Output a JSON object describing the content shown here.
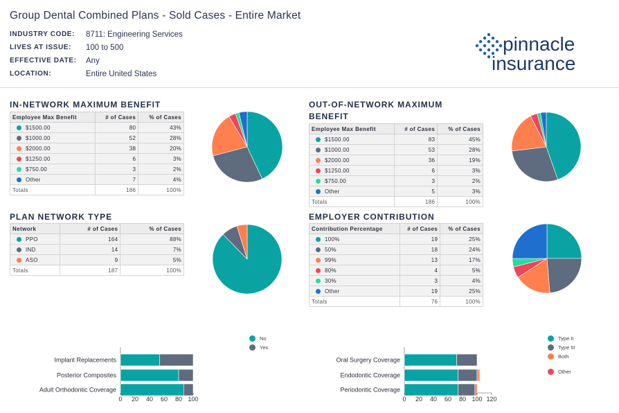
{
  "header": {
    "title": "Group Dental Combined Plans - Sold Cases - Entire Market",
    "meta": [
      {
        "key": "INDUSTRY CODE:",
        "value": "8711: Engineering Services"
      },
      {
        "key": "LIVES AT ISSUE:",
        "value": "100 to 500"
      },
      {
        "key": "EFFECTIVE DATE:",
        "value": "Any"
      },
      {
        "key": "LOCATION:",
        "value": "Entire United States"
      }
    ],
    "logo_top": "pinnacle",
    "logo_bottom": "insurance"
  },
  "colors": {
    "teal": "#0aa3a3",
    "slate": "#5f6b7e",
    "orange": "#ff7f4f",
    "red": "#ef4558",
    "green": "#2ed9a0",
    "blue": "#1f6fcf"
  },
  "chart_data": [
    {
      "type": "table",
      "title": "IN-NETWORK MAXIMUM BENEFIT",
      "columns": [
        "Employee Max Benefit",
        "# of Cases",
        "% of Cases"
      ],
      "rows": [
        {
          "label": "$1500.00",
          "cases": "80",
          "pct": "43%",
          "value": 80,
          "color": "#0aa3a3"
        },
        {
          "label": "$1000.00",
          "cases": "52",
          "pct": "28%",
          "value": 52,
          "color": "#5f6b7e"
        },
        {
          "label": "$2000.00",
          "cases": "38",
          "pct": "20%",
          "value": 38,
          "color": "#ff7f4f"
        },
        {
          "label": "$1250.00",
          "cases": "6",
          "pct": "3%",
          "value": 6,
          "color": "#ef4558"
        },
        {
          "label": "$750.00",
          "cases": "3",
          "pct": "2%",
          "value": 3,
          "color": "#2ed9a0"
        },
        {
          "label": "Other",
          "cases": "7",
          "pct": "4%",
          "value": 7,
          "color": "#1f6fcf"
        }
      ],
      "totals": {
        "label": "Totals",
        "cases": "186",
        "pct": "100%"
      }
    },
    {
      "type": "table",
      "title": "OUT-OF-NETWORK MAXIMUM BENEFIT",
      "columns": [
        "Employee Max Benefit",
        "# of Cases",
        "% of Cases"
      ],
      "rows": [
        {
          "label": "$1500.00",
          "cases": "83",
          "pct": "45%",
          "value": 83,
          "color": "#0aa3a3"
        },
        {
          "label": "$1000.00",
          "cases": "53",
          "pct": "28%",
          "value": 53,
          "color": "#5f6b7e"
        },
        {
          "label": "$2000.00",
          "cases": "36",
          "pct": "19%",
          "value": 36,
          "color": "#ff7f4f"
        },
        {
          "label": "$1250.00",
          "cases": "6",
          "pct": "3%",
          "value": 6,
          "color": "#ef4558"
        },
        {
          "label": "$750.00",
          "cases": "3",
          "pct": "2%",
          "value": 3,
          "color": "#2ed9a0"
        },
        {
          "label": "Other",
          "cases": "5",
          "pct": "3%",
          "value": 5,
          "color": "#1f6fcf"
        }
      ],
      "totals": {
        "label": "Totals",
        "cases": "186",
        "pct": "100%"
      }
    },
    {
      "type": "table",
      "title": "PLAN NETWORK TYPE",
      "columns": [
        "Network",
        "# of Cases",
        "% of Cases"
      ],
      "rows": [
        {
          "label": "PPO",
          "cases": "164",
          "pct": "88%",
          "value": 164,
          "color": "#0aa3a3"
        },
        {
          "label": "IND",
          "cases": "14",
          "pct": "7%",
          "value": 14,
          "color": "#5f6b7e"
        },
        {
          "label": "ASO",
          "cases": "9",
          "pct": "5%",
          "value": 9,
          "color": "#ff7f4f"
        }
      ],
      "totals": {
        "label": "Totals",
        "cases": "187",
        "pct": "100%"
      }
    },
    {
      "type": "table",
      "title": "EMPLOYER CONTRIBUTION",
      "columns": [
        "Contribution Percentage",
        "# of Cases",
        "% of Cases"
      ],
      "rows": [
        {
          "label": "100%",
          "cases": "19",
          "pct": "25%",
          "value": 19,
          "color": "#0aa3a3"
        },
        {
          "label": "50%",
          "cases": "18",
          "pct": "24%",
          "value": 18,
          "color": "#5f6b7e"
        },
        {
          "label": "99%",
          "cases": "13",
          "pct": "17%",
          "value": 13,
          "color": "#ff7f4f"
        },
        {
          "label": "80%",
          "cases": "4",
          "pct": "5%",
          "value": 4,
          "color": "#ef4558"
        },
        {
          "label": "30%",
          "cases": "3",
          "pct": "4%",
          "value": 3,
          "color": "#2ed9a0"
        },
        {
          "label": "Other",
          "cases": "19",
          "pct": "25%",
          "value": 19,
          "color": "#1f6fcf"
        }
      ],
      "totals": {
        "label": "Totals",
        "cases": "76",
        "pct": "100%"
      }
    },
    {
      "type": "bar",
      "orientation": "horizontal",
      "stacked": true,
      "categories": [
        "Implant Replacements",
        "Posterior Composites",
        "Adult Orthodontic Coverage"
      ],
      "series": [
        {
          "name": "No",
          "color": "#0aa3a3",
          "values": [
            54,
            80,
            87
          ]
        },
        {
          "name": "Yes",
          "color": "#5f6b7e",
          "values": [
            46,
            20,
            13
          ]
        }
      ],
      "xlim": [
        0,
        100
      ],
      "xticks": [
        "0",
        "20",
        "40",
        "60",
        "80",
        "100"
      ],
      "legend": "top-right"
    },
    {
      "type": "bar",
      "orientation": "horizontal",
      "stacked": true,
      "categories": [
        "Oral Surgery Coverage",
        "Endodontic Coverage",
        "Periodontic Coverage"
      ],
      "series": [
        {
          "name": "Type II",
          "color": "#0aa3a3",
          "values": [
            72,
            74,
            74
          ]
        },
        {
          "name": "Type III",
          "color": "#5f6b7e",
          "values": [
            28,
            26,
            23
          ]
        },
        {
          "name": "Both",
          "color": "#ff7f4f",
          "values": [
            0,
            3,
            3
          ]
        },
        {
          "name": "Other",
          "color": "#ef4558",
          "values": [
            0,
            1,
            0
          ]
        }
      ],
      "xlim": [
        0,
        120
      ],
      "xticks": [
        "0",
        "20",
        "40",
        "60",
        "80",
        "100",
        "120"
      ],
      "legend": "top-right"
    }
  ]
}
